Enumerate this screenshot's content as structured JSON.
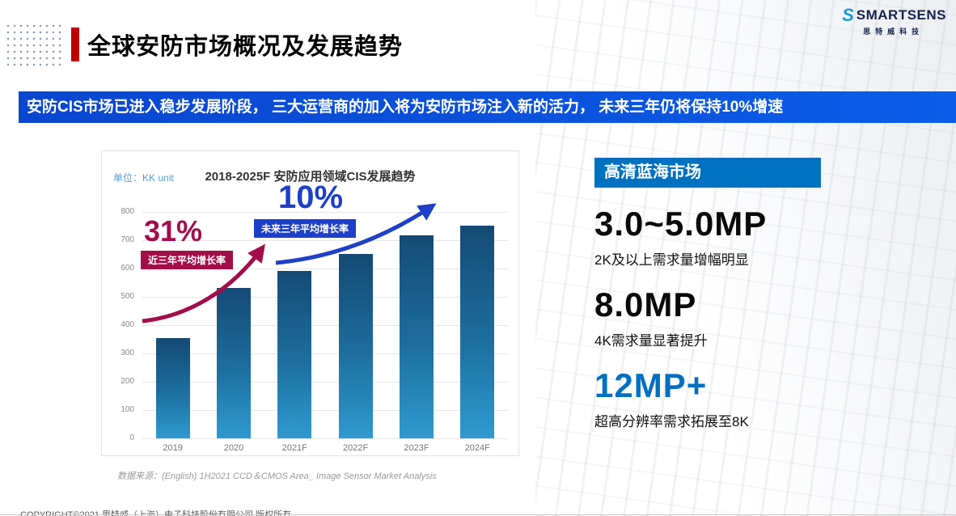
{
  "header": {
    "title": "全球安防市场概况及发展趋势",
    "logo_brand": "SMARTSENS",
    "logo_sub": "思特威科技"
  },
  "banner": {
    "text": "安防CIS市场已进入稳步发展阶段， 三大运营商的加入将为安防市场注入新的活力， 未来三年仍将保持10%增速"
  },
  "chart_data": {
    "type": "bar",
    "title": "2018-2025F 安防应用领域CIS发展趋势",
    "unit_label": "单位：KK unit",
    "categories": [
      "2019",
      "2020",
      "2021F",
      "2022F",
      "2023F",
      "2024F"
    ],
    "values": [
      355,
      530,
      590,
      650,
      718,
      750
    ],
    "ylim": [
      0,
      800
    ],
    "yticks": [
      0,
      100,
      200,
      300,
      400,
      500,
      600,
      700,
      800
    ],
    "grid": true,
    "legend": "none",
    "annotations": [
      {
        "pct": "31%",
        "label": "近三年平均增长率"
      },
      {
        "pct": "10%",
        "label": "未来三年平均增长率"
      }
    ],
    "source": "数据来源：(English) 1H2021 CCD＆CMOS  Area_ Image Sensor Market Analysis"
  },
  "right_panel": {
    "header": "高清蓝海市场",
    "items": [
      {
        "value": "3.0~5.0MP",
        "desc": "2K及以上需求量增幅明显",
        "color": "#0a0a0a"
      },
      {
        "value": "8.0MP",
        "desc": "4K需求量显著提升",
        "color": "#0a0a0a"
      },
      {
        "value": "12MP+",
        "desc": "超高分辨率需求拓展至8K",
        "color": "#0070c0"
      }
    ]
  },
  "footer": {
    "copyright": "COPYRIGHT©2021 思特威（上海）电子科技股份有限公司 版权所有"
  },
  "colors": {
    "accent_red": "#a30d4a",
    "accent_blue": "#1e3fc8",
    "panel_blue": "#0070c0",
    "title_red": "#c00000",
    "banner_blue_start": "#0a46d0",
    "banner_blue_end": "#0c5ce8",
    "bar_top": "#144a74",
    "bar_bottom": "#2f9ad0",
    "unit_blue": "#5b9bd5",
    "logo_navy": "#16224a",
    "logo_cyan": "#1899d6"
  }
}
